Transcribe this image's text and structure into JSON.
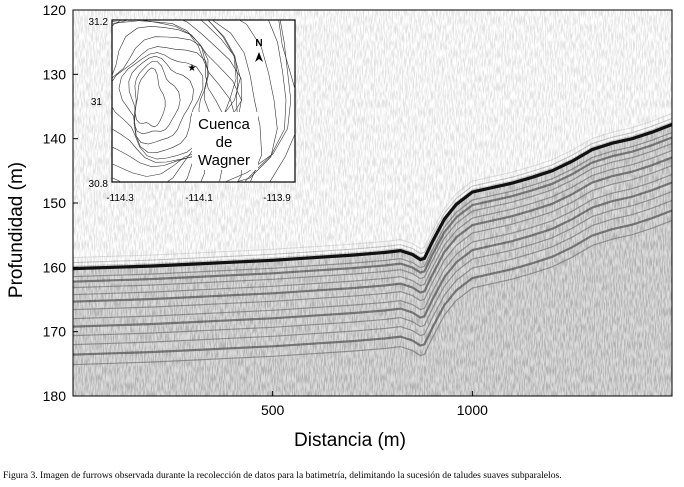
{
  "figure": {
    "ylabel": "Profundidad (m)",
    "xlabel": "Distancia (m)",
    "y_ticks": [
      "120",
      "130",
      "140",
      "150",
      "160",
      "170",
      "180"
    ],
    "x_ticks": [
      "500",
      "1000"
    ],
    "colors": {
      "background": "#ffffff",
      "noise": "#8a8a8a",
      "reflector": "#111111",
      "axes": "#000000"
    }
  },
  "chart_data": {
    "type": "line",
    "title": "",
    "xlabel": "Distancia (m)",
    "ylabel": "Profundidad (m)",
    "xlim": [
      0,
      1500
    ],
    "ylim": [
      120,
      180
    ],
    "y_inverted": true,
    "series": [
      {
        "x": [
          0,
          100,
          200,
          300,
          400,
          500,
          600,
          700,
          780,
          820,
          850,
          870,
          880,
          900,
          930,
          960,
          1000,
          1050,
          1100,
          1150,
          1200,
          1250,
          1300,
          1350,
          1400,
          1450,
          1500
        ],
        "values": [
          160.2,
          160.0,
          159.8,
          159.5,
          159.2,
          158.9,
          158.5,
          158.1,
          157.7,
          157.4,
          158.0,
          158.8,
          158.6,
          156.0,
          152.5,
          150.2,
          148.3,
          147.6,
          146.9,
          146.0,
          145.0,
          143.5,
          141.7,
          140.7,
          140.0,
          139.0,
          137.8
        ]
      }
    ]
  },
  "inset": {
    "y_ticks": [
      "31.2",
      "31",
      "30.8"
    ],
    "x_ticks": [
      "-114.3",
      "-114.1",
      "-113.9"
    ],
    "north_label": "N",
    "basin_label": [
      "Cuenca",
      "de",
      "Wagner"
    ],
    "station_marker": "★"
  },
  "caption": "Figura 3. Imagen de furrows observada durante la recolección de datos para la batimetría, delimitando la sucesión de taludes suaves subparalelos."
}
